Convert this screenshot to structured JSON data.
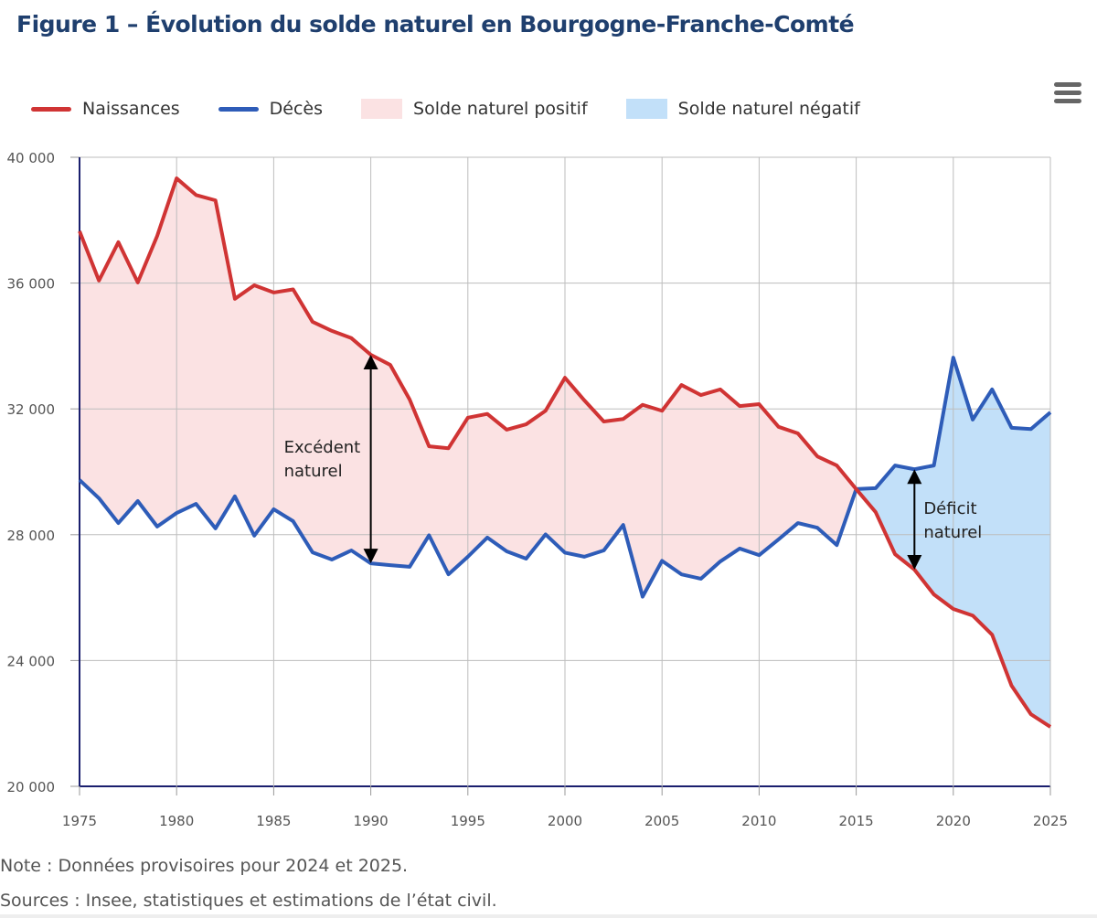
{
  "title": "Figure 1 – Évolution du solde naturel en Bourgogne-Franche-Comté",
  "menu_icon": "hamburger-menu-icon",
  "legend": [
    {
      "label": "Naissances",
      "type": "line",
      "color": "#d03434"
    },
    {
      "label": "Décès",
      "type": "line",
      "color": "#2e5cb8"
    },
    {
      "label": "Solde naturel positif",
      "type": "area",
      "color": "#fbe2e3"
    },
    {
      "label": "Solde naturel négatif",
      "type": "area",
      "color": "#c2e0f9"
    }
  ],
  "notes": {
    "note": "Note : Données provisoires pour 2024 et 2025.",
    "sources": "Sources : Insee, statistiques et estimations de l’état civil."
  },
  "chart_data": {
    "type": "line",
    "title": "Figure 1 – Évolution du solde naturel en Bourgogne-Franche-Comté",
    "xlabel": "",
    "ylabel": "",
    "xlim": [
      1975,
      2025
    ],
    "ylim": [
      20000,
      40000
    ],
    "grid": true,
    "legend_position": "top-left",
    "x_ticks": [
      1975,
      1980,
      1985,
      1990,
      1995,
      2000,
      2005,
      2010,
      2015,
      2020,
      2025
    ],
    "y_ticks": [
      20000,
      24000,
      28000,
      32000,
      36000,
      40000
    ],
    "y_tick_labels": [
      "20 000",
      "24 000",
      "28 000",
      "32 000",
      "36 000",
      "40 000"
    ],
    "x": [
      1975,
      1976,
      1977,
      1978,
      1979,
      1980,
      1981,
      1982,
      1983,
      1984,
      1985,
      1986,
      1987,
      1988,
      1989,
      1990,
      1991,
      1992,
      1993,
      1994,
      1995,
      1996,
      1997,
      1998,
      1999,
      2000,
      2001,
      2002,
      2003,
      2004,
      2005,
      2006,
      2007,
      2008,
      2009,
      2010,
      2011,
      2012,
      2013,
      2014,
      2015,
      2016,
      2017,
      2018,
      2019,
      2020,
      2021,
      2022,
      2023,
      2024,
      2025
    ],
    "series": [
      {
        "name": "Naissances",
        "color": "#d03434",
        "values": [
          37650,
          36080,
          37300,
          36020,
          37500,
          39330,
          38800,
          38630,
          35500,
          35930,
          35700,
          35800,
          34770,
          34480,
          34250,
          33720,
          33400,
          32300,
          30810,
          30750,
          31720,
          31840,
          31340,
          31510,
          31940,
          32990,
          32270,
          31600,
          31680,
          32130,
          31940,
          32760,
          32440,
          32620,
          32090,
          32150,
          31430,
          31220,
          30490,
          30200,
          29450,
          28720,
          27380,
          26890,
          26100,
          25640,
          25430,
          24820,
          23200,
          22290,
          21890
        ]
      },
      {
        "name": "Décès",
        "color": "#2e5cb8",
        "values": [
          29740,
          29160,
          28370,
          29070,
          28260,
          28690,
          28980,
          28200,
          29220,
          27970,
          28810,
          28430,
          27440,
          27210,
          27500,
          27090,
          27030,
          26980,
          27980,
          26740,
          27300,
          27910,
          27470,
          27240,
          28010,
          27430,
          27300,
          27500,
          28310,
          26030,
          27170,
          26740,
          26600,
          27150,
          27560,
          27350,
          27850,
          28370,
          28220,
          27670,
          29450,
          29480,
          30200,
          30080,
          30200,
          33630,
          31660,
          32620,
          31400,
          31360,
          31890
        ]
      }
    ],
    "areas": [
      {
        "name": "Solde naturel positif",
        "color": "#fbe2e3",
        "between": [
          "Naissances",
          "Décès"
        ],
        "when": "Naissances > Décès"
      },
      {
        "name": "Solde naturel négatif",
        "color": "#c2e0f9",
        "between": [
          "Décès",
          "Naissances"
        ],
        "when": "Décès > Naissances"
      }
    ],
    "annotations": [
      {
        "text_lines": [
          "Excédent",
          "naturel"
        ],
        "x": 1990,
        "from": 27090,
        "to": 33720
      },
      {
        "text_lines": [
          "Déficit",
          "naturel"
        ],
        "x": 2018,
        "from": 26890,
        "to": 30080
      }
    ]
  }
}
